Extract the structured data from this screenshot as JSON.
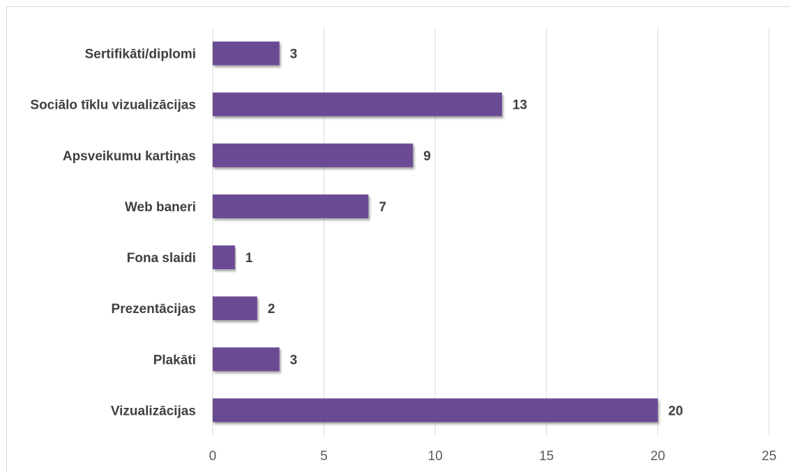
{
  "chart_data": {
    "type": "bar",
    "orientation": "horizontal",
    "categories": [
      "Sertifikāti/diplomi",
      "Sociālo tīklu vizualizācijas",
      "Apsveikumu kartiņas",
      "Web baneri",
      "Fona slaidi",
      "Prezentācijas",
      "Plakāti",
      "Vizualizācijas"
    ],
    "values": [
      3,
      13,
      9,
      7,
      1,
      2,
      3,
      20
    ],
    "xlim": [
      0,
      25
    ],
    "xticks": [
      "0",
      "5",
      "10",
      "15",
      "20",
      "25"
    ],
    "grid": true,
    "data_labels": true,
    "title": "",
    "xlabel": "",
    "ylabel": "",
    "bar_color": "#6a4c93"
  }
}
